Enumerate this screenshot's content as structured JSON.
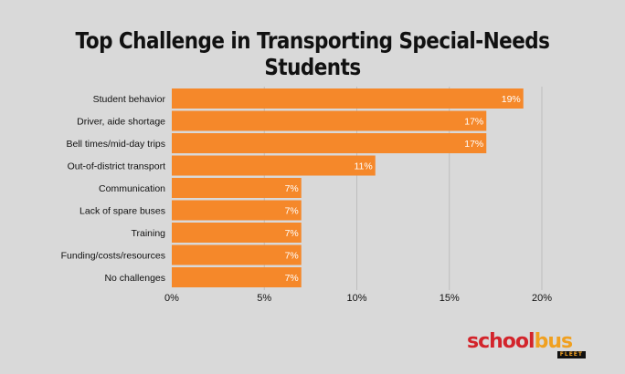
{
  "chart_data": {
    "type": "bar",
    "orientation": "horizontal",
    "title": "Top Challenge in Transporting Special-Needs Students",
    "categories": [
      "Student behavior",
      "Driver, aide shortage",
      "Bell times/mid-day trips",
      "Out-of-district transport",
      "Communication",
      "Lack of spare buses",
      "Training",
      "Funding/costs/resources",
      "No challenges"
    ],
    "values": [
      19,
      17,
      17,
      11,
      7,
      7,
      7,
      7,
      7
    ],
    "value_labels": [
      "19%",
      "17%",
      "17%",
      "11%",
      "7%",
      "7%",
      "7%",
      "7%",
      "7%"
    ],
    "x_ticks": [
      "0%",
      "5%",
      "10%",
      "15%",
      "20%"
    ],
    "xlim": [
      0,
      20
    ],
    "grid": true,
    "colors": {
      "bar": "#f5882a",
      "background": "#d9d9d9",
      "grid": "#bdbdbd"
    }
  },
  "logo": {
    "text_main_1": "school",
    "text_main_2": "bus",
    "text_sub": "FLEET"
  }
}
